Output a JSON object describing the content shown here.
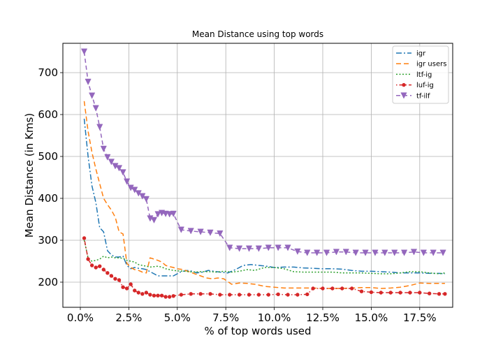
{
  "chart_data": {
    "type": "line",
    "title": "Mean Distance using top words",
    "xlabel": "% of top words used",
    "ylabel": "Mean Distance (in Kms)",
    "xlim": [
      -0.9,
      19.2
    ],
    "ylim": [
      140,
      770
    ],
    "xticks": [
      0,
      2.5,
      5,
      7.5,
      10,
      12.5,
      15,
      17.5
    ],
    "xtick_labels": [
      "0.0%",
      "2.5%",
      "5.0%",
      "7.5%",
      "10.0%",
      "12.5%",
      "15.0%",
      "17.5%"
    ],
    "yticks": [
      200,
      300,
      400,
      500,
      600,
      700
    ],
    "ytick_labels": [
      "200",
      "300",
      "400",
      "500",
      "600",
      "700"
    ],
    "grid": true,
    "legend_position": "top-right",
    "series": [
      {
        "name": "igr",
        "color": "#1f77b4",
        "dash": "8,3,2,3",
        "marker": "none",
        "x": [
          0.2,
          0.4,
          0.6,
          0.8,
          1.0,
          1.2,
          1.4,
          1.6,
          1.8,
          2.0,
          2.2,
          2.4,
          2.6,
          2.8,
          3.0,
          3.2,
          3.4,
          3.6,
          3.8,
          4.0,
          4.2,
          4.4,
          4.6,
          4.8,
          5.0,
          5.2,
          5.5,
          5.8,
          6.0,
          6.3,
          6.6,
          6.9,
          7.2,
          7.6,
          8.0,
          8.4,
          8.8,
          9.2,
          9.6,
          10.0,
          10.5,
          11.0,
          11.5,
          12.0,
          12.5,
          13.0,
          13.5,
          14.0,
          14.5,
          15.0,
          15.5,
          16.0,
          16.5,
          17.0,
          17.5,
          18.0,
          18.5,
          18.8
        ],
        "y": [
          590,
          500,
          430,
          390,
          330,
          320,
          275,
          265,
          260,
          260,
          262,
          240,
          232,
          235,
          233,
          232,
          230,
          225,
          220,
          215,
          215,
          215,
          215,
          215,
          220,
          225,
          228,
          226,
          222,
          224,
          228,
          226,
          224,
          222,
          230,
          240,
          242,
          240,
          238,
          235,
          236,
          236,
          234,
          233,
          232,
          232,
          231,
          228,
          226,
          226,
          225,
          224,
          222,
          222,
          222,
          221,
          221,
          220
        ]
      },
      {
        "name": "igr users",
        "color": "#ff7f0e",
        "dash": "7,4",
        "marker": "none",
        "x": [
          0.2,
          0.4,
          0.6,
          0.8,
          1.0,
          1.2,
          1.4,
          1.6,
          1.8,
          2.0,
          2.2,
          2.4,
          2.6,
          2.8,
          3.0,
          3.2,
          3.4,
          3.6,
          3.8,
          4.0,
          4.2,
          4.4,
          4.6,
          4.8,
          5.0,
          5.3,
          5.6,
          5.9,
          6.2,
          6.5,
          6.8,
          7.1,
          7.4,
          7.8,
          8.2,
          8.6,
          9.0,
          9.5,
          10.0,
          10.5,
          11.0,
          11.5,
          12.0,
          12.5,
          13.0,
          13.5,
          14.0,
          14.5,
          15.0,
          15.5,
          16.0,
          16.5,
          17.0,
          17.5,
          18.0,
          18.5,
          18.8
        ],
        "y": [
          632,
          560,
          510,
          470,
          435,
          400,
          385,
          372,
          355,
          320,
          315,
          245,
          235,
          230,
          228,
          224,
          222,
          258,
          255,
          252,
          248,
          240,
          237,
          235,
          232,
          230,
          225,
          220,
          215,
          210,
          208,
          210,
          208,
          195,
          198,
          197,
          195,
          190,
          188,
          186,
          186,
          186,
          186,
          185,
          185,
          185,
          186,
          187,
          187,
          185,
          186,
          188,
          192,
          198,
          197,
          197,
          197
        ]
      },
      {
        "name": "ltf-ig",
        "color": "#2ca02c",
        "dash": "2,2.5",
        "marker": "none",
        "x": [
          0.2,
          0.4,
          0.6,
          0.8,
          1.0,
          1.2,
          1.4,
          1.6,
          1.8,
          2.0,
          2.2,
          2.4,
          2.6,
          2.8,
          3.0,
          3.2,
          3.4,
          3.6,
          3.8,
          4.0,
          4.2,
          4.4,
          4.6,
          4.8,
          5.0,
          5.4,
          5.8,
          6.2,
          6.6,
          7.0,
          7.4,
          7.8,
          8.2,
          8.6,
          9.0,
          9.5,
          10.0,
          10.5,
          11.0,
          11.5,
          12.0,
          12.5,
          13.0,
          13.5,
          14.0,
          14.5,
          15.0,
          15.5,
          16.0,
          16.5,
          17.0,
          17.5,
          18.0,
          18.5,
          18.8
        ],
        "y": [
          300,
          258,
          250,
          252,
          255,
          262,
          258,
          260,
          258,
          258,
          257,
          252,
          250,
          248,
          242,
          240,
          238,
          236,
          237,
          238,
          236,
          232,
          230,
          228,
          227,
          226,
          224,
          225,
          225,
          224,
          226,
          224,
          226,
          230,
          228,
          235,
          235,
          232,
          225,
          224,
          224,
          224,
          224,
          222,
          222,
          222,
          221,
          220,
          220,
          222,
          225,
          225,
          222,
          220,
          222
        ]
      },
      {
        "name": "luf-ig",
        "color": "#d62728",
        "dash": "1.5,3,6,3",
        "marker": "circle",
        "x": [
          0.2,
          0.4,
          0.6,
          0.8,
          1.0,
          1.2,
          1.4,
          1.6,
          1.8,
          2.0,
          2.2,
          2.4,
          2.6,
          2.8,
          3.0,
          3.2,
          3.4,
          3.6,
          3.8,
          4.0,
          4.2,
          4.4,
          4.6,
          4.8,
          5.2,
          5.7,
          6.2,
          6.7,
          7.2,
          7.7,
          8.2,
          8.7,
          9.2,
          9.7,
          10.2,
          10.7,
          11.2,
          11.7,
          12.0,
          12.5,
          13.0,
          13.5,
          14.0,
          14.5,
          15.0,
          15.5,
          16.0,
          16.5,
          17.0,
          17.5,
          18.0,
          18.5,
          18.8
        ],
        "y": [
          305,
          255,
          240,
          235,
          238,
          230,
          222,
          215,
          208,
          205,
          188,
          185,
          195,
          180,
          175,
          172,
          175,
          170,
          168,
          168,
          168,
          165,
          165,
          167,
          170,
          172,
          172,
          172,
          170,
          170,
          170,
          170,
          170,
          170,
          171,
          170,
          170,
          171,
          185,
          185,
          185,
          185,
          185,
          178,
          176,
          175,
          175,
          175,
          175,
          175,
          173,
          172,
          172
        ]
      },
      {
        "name": "tf-ilf",
        "color": "#9467bd",
        "dash": "6,4",
        "marker": "triangle-down",
        "x": [
          0.2,
          0.4,
          0.6,
          0.8,
          1.0,
          1.2,
          1.4,
          1.6,
          1.8,
          2.0,
          2.2,
          2.4,
          2.6,
          2.8,
          3.0,
          3.2,
          3.4,
          3.6,
          3.8,
          4.0,
          4.2,
          4.4,
          4.6,
          4.8,
          5.2,
          5.7,
          6.2,
          6.7,
          7.2,
          7.7,
          8.2,
          8.7,
          9.2,
          9.7,
          10.2,
          10.7,
          11.2,
          11.7,
          12.2,
          12.7,
          13.2,
          13.7,
          14.2,
          14.7,
          15.2,
          15.7,
          16.2,
          16.7,
          17.2,
          17.7,
          18.2,
          18.7
        ],
        "y": [
          750,
          678,
          645,
          615,
          570,
          518,
          498,
          487,
          477,
          472,
          462,
          440,
          425,
          420,
          412,
          405,
          398,
          352,
          348,
          362,
          365,
          363,
          362,
          363,
          325,
          322,
          320,
          318,
          316,
          282,
          280,
          280,
          280,
          282,
          282,
          282,
          273,
          270,
          270,
          270,
          272,
          272,
          270,
          270,
          270,
          270,
          270,
          270,
          272,
          270,
          270,
          270
        ]
      }
    ]
  }
}
